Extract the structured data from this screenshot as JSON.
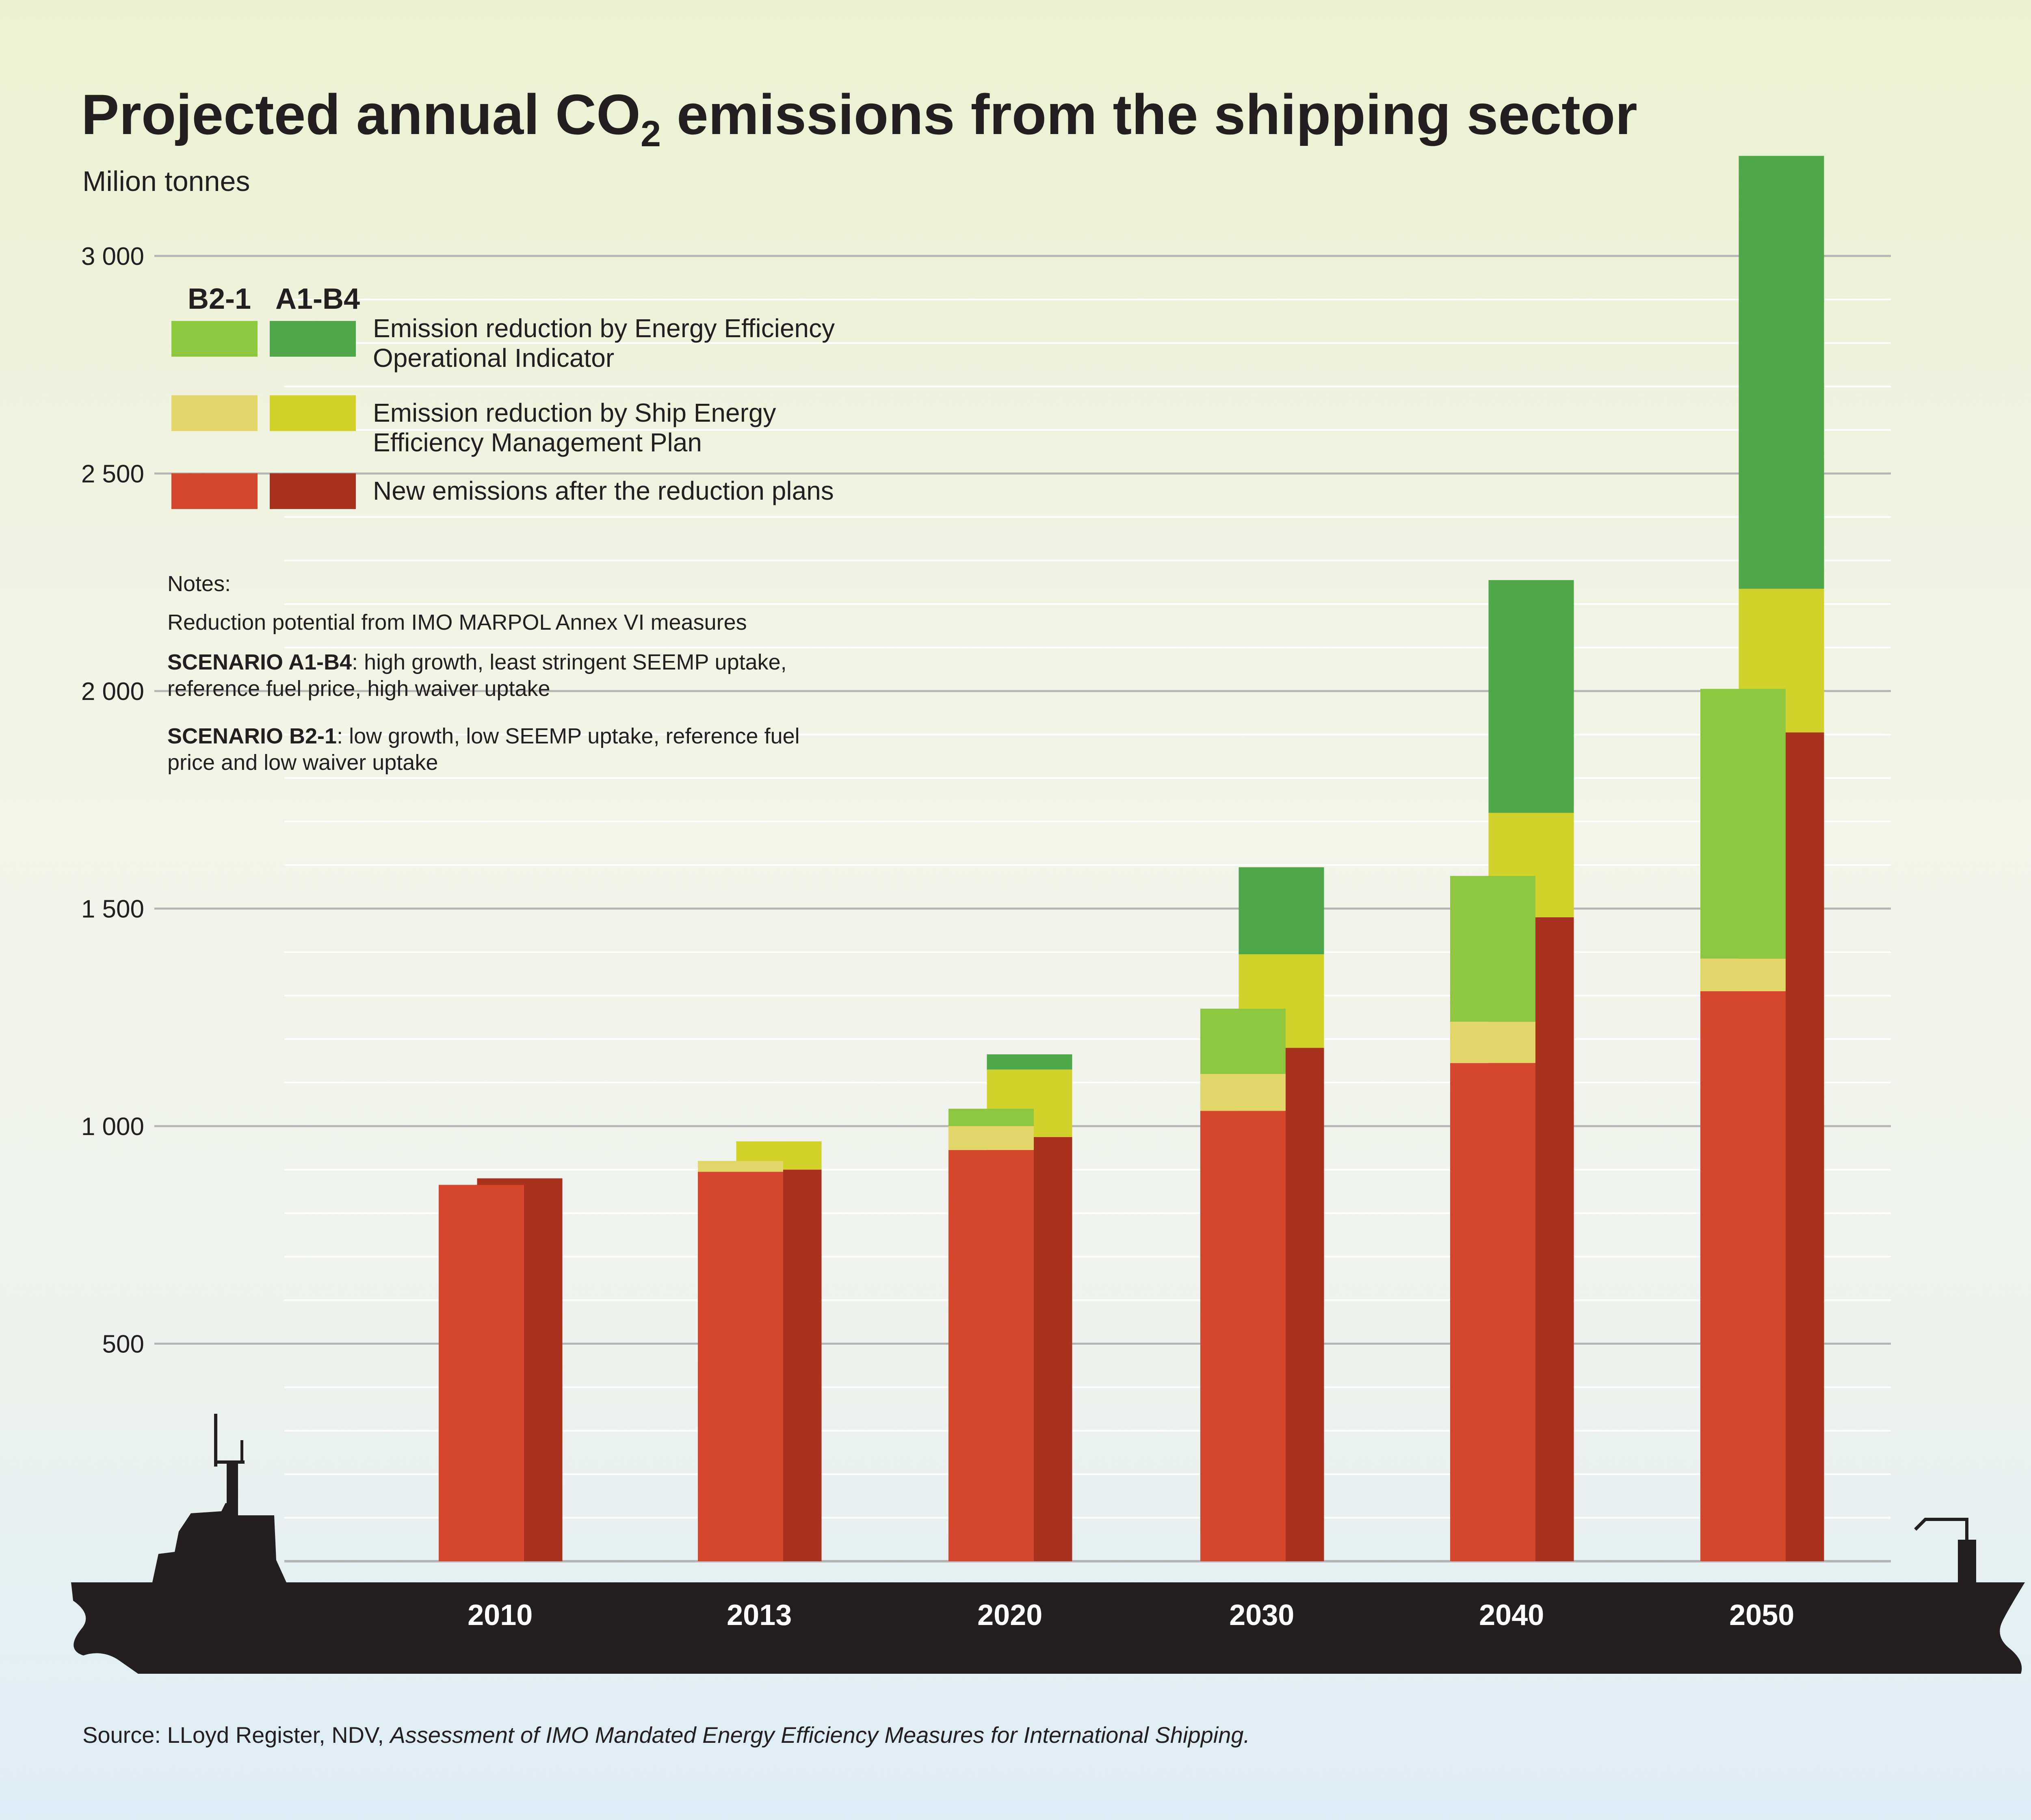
{
  "chart_data": {
    "type": "bar",
    "title": {
      "main": "Projected annual CO",
      "subscript": "2",
      "rest": " emissions from the shipping sector"
    },
    "ylabel": "Milion tonnes",
    "ylim": [
      0,
      3000
    ],
    "yticks": [
      {
        "value": 500,
        "label": "500"
      },
      {
        "value": 1000,
        "label": "1 000"
      },
      {
        "value": 1500,
        "label": "1 500"
      },
      {
        "value": 2000,
        "label": "2 000"
      },
      {
        "value": 2500,
        "label": "2 500"
      },
      {
        "value": 3000,
        "label": "3 000"
      }
    ],
    "grid": true,
    "categories": [
      "2010",
      "2013",
      "2020",
      "2030",
      "2040",
      "2050"
    ],
    "scenarios": [
      "B2-1",
      "A1-B4"
    ],
    "components": [
      "New emissions after the reduction plans",
      "Emission reduction by Ship Energy Efficiency Management Plan",
      "Emission reduction by Energy Efficiency Operational Indicator"
    ],
    "series": [
      {
        "scenario": "B2-1",
        "component": "New emissions after the reduction plans",
        "color": "#d5472c",
        "values": [
          865,
          895,
          945,
          1035,
          1145,
          1310
        ]
      },
      {
        "scenario": "B2-1",
        "component": "Emission reduction by Ship Energy Efficiency Management Plan",
        "color": "#e3d669",
        "values": [
          0,
          25,
          55,
          85,
          95,
          75
        ]
      },
      {
        "scenario": "B2-1",
        "component": "Emission reduction by Energy Efficiency Operational Indicator",
        "color": "#8dc63f",
        "values": [
          0,
          0,
          40,
          150,
          335,
          620
        ]
      },
      {
        "scenario": "A1-B4",
        "component": "New emissions after the reduction plans",
        "color": "#a8321e",
        "values": [
          880,
          900,
          975,
          1180,
          1480,
          1905
        ]
      },
      {
        "scenario": "A1-B4",
        "component": "Emission reduction by Ship Energy Efficiency Management Plan",
        "color": "#d2d12a",
        "values": [
          0,
          65,
          155,
          215,
          240,
          330
        ]
      },
      {
        "scenario": "A1-B4",
        "component": "Emission reduction by Energy Efficiency Operational Indicator",
        "color": "#4ea84a",
        "values": [
          0,
          0,
          35,
          200,
          535,
          995
        ]
      }
    ],
    "legend": {
      "placement": "top-left",
      "header_b21": "B2-1",
      "header_a1b4": "A1-B4",
      "items": [
        {
          "label_line1": "Emission reduction by Energy Efficiency",
          "label_line2": "Operational Indicator",
          "color_b21": "#8dc63f",
          "color_a1b4": "#4ea84a"
        },
        {
          "label_line1": "Emission reduction by Ship Energy",
          "label_line2": "Efficiency Management Plan",
          "color_b21": "#e3d669",
          "color_a1b4": "#d2d12a"
        },
        {
          "label_line1": "New emissions after the reduction plans",
          "label_line2": "",
          "color_b21": "#d5472c",
          "color_a1b4": "#a8321e"
        }
      ]
    },
    "notes": {
      "heading": "Notes:",
      "line1": "Reduction potential from IMO MARPOL Annex VI  measures",
      "a1b4_bold": "SCENARIO A1-B4",
      "a1b4_text1": ": high growth, least stringent SEEMP uptake,",
      "a1b4_text2": "reference fuel price, high waiver uptake",
      "b21_bold": "SCENARIO B2-1",
      "b21_text1": ": low growth, low SEEMP uptake, reference fuel",
      "b21_text2": "price and low waiver uptake"
    },
    "source": {
      "prefix": "Source: LLoyd Register, NDV, ",
      "italic": "Assessment of IMO Mandated Energy Efficiency Measures for International Shipping."
    }
  },
  "colors": {
    "ship": "#231f20",
    "grid": "#b5b5b5",
    "grid_minor": "#ffffff",
    "text": "#231f20",
    "year_label": "#ffffff"
  }
}
